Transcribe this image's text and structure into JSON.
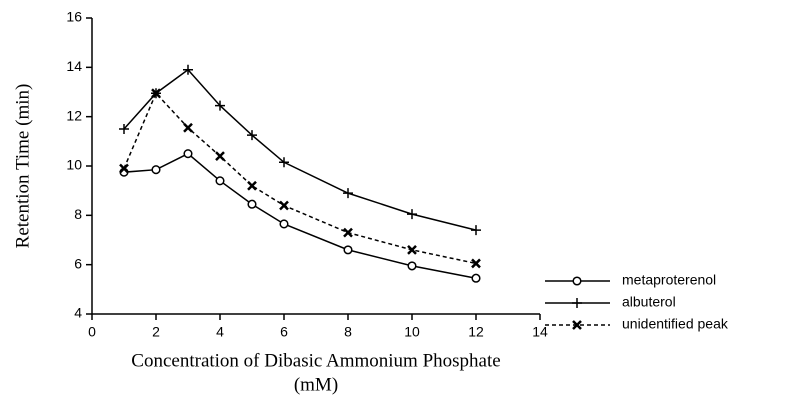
{
  "chart_data": {
    "type": "line",
    "ylabel": "Retention Time (min)",
    "xlabel": [
      "Concentration of Dibasic Ammonium Phosphate",
      "(mM)"
    ],
    "x": [
      1,
      2,
      3,
      4,
      5,
      6,
      8,
      10,
      12
    ],
    "series": [
      {
        "name": "metaproterenol",
        "color": "#000000",
        "marker": "circle",
        "dash": "solid",
        "values": [
          9.75,
          9.85,
          10.5,
          9.4,
          8.45,
          7.65,
          6.6,
          5.95,
          5.45
        ]
      },
      {
        "name": "albuterol",
        "color": "#000000",
        "marker": "plus",
        "dash": "solid",
        "values": [
          11.5,
          12.95,
          13.9,
          12.45,
          11.25,
          10.15,
          8.9,
          8.05,
          7.4
        ]
      },
      {
        "name": "unidentified peak",
        "color": "#000000",
        "marker": "x",
        "dash": "dashed",
        "values": [
          9.9,
          12.95,
          11.55,
          10.4,
          9.2,
          8.4,
          7.3,
          6.6,
          6.05
        ]
      }
    ],
    "xlim": [
      0,
      14
    ],
    "xticks": [
      0,
      2,
      4,
      6,
      8,
      10,
      12,
      14
    ],
    "ylim": [
      4,
      16
    ],
    "yticks": [
      4,
      6,
      8,
      10,
      12,
      14,
      16
    ],
    "grid": false,
    "legend": "right"
  }
}
